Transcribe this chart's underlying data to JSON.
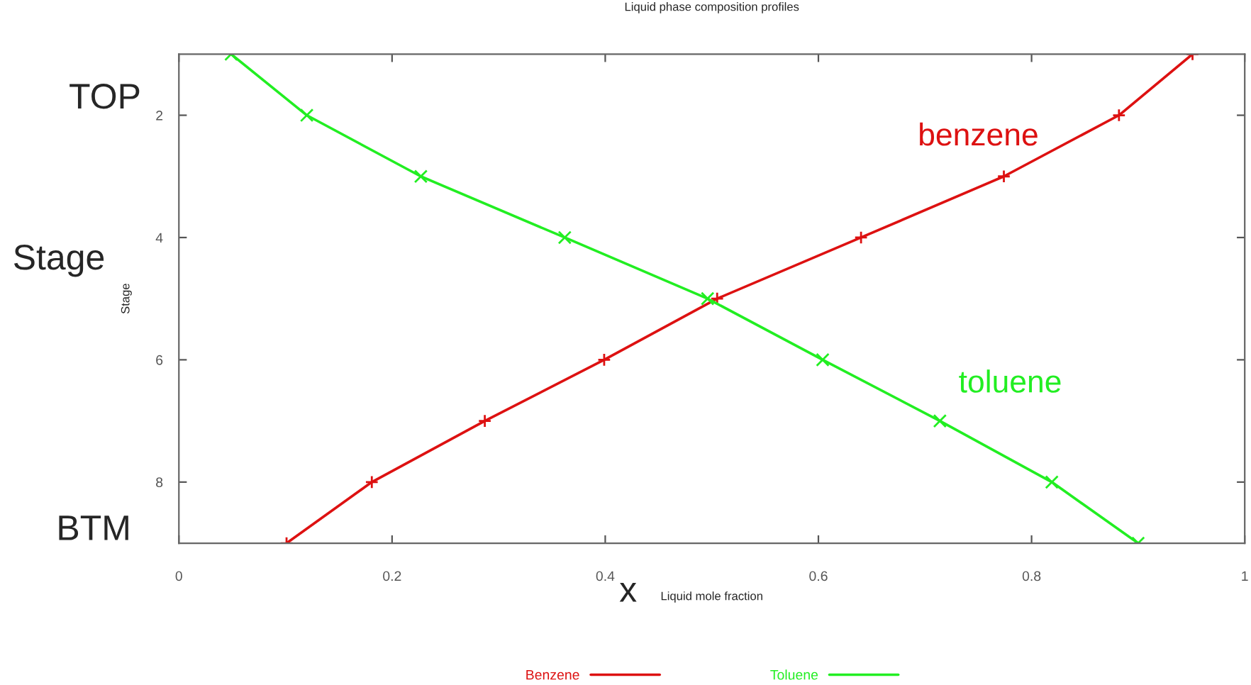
{
  "chart_data": {
    "type": "line",
    "title": "Liquid phase composition profiles",
    "xlabel": "Liquid mole fraction",
    "ylabel": "Stage",
    "xlim": [
      0,
      1
    ],
    "xticks": [
      0,
      0.2,
      0.4,
      0.6,
      0.8,
      1
    ],
    "ylim": [
      9,
      1
    ],
    "yticks": [
      2,
      4,
      6,
      8
    ],
    "grid": false,
    "legend": "bottom",
    "series": [
      {
        "name": "Benzene",
        "color": "#dd1111",
        "marker": "plus",
        "x": [
          0.951,
          0.882,
          0.774,
          0.64,
          0.505,
          0.399,
          0.287,
          0.181,
          0.101
        ],
        "values": [
          1,
          2,
          3,
          4,
          5,
          6,
          7,
          8,
          9
        ]
      },
      {
        "name": "Toluene",
        "color": "#22ee22",
        "marker": "cross",
        "x": [
          0.049,
          0.12,
          0.227,
          0.362,
          0.496,
          0.604,
          0.714,
          0.819,
          0.9
        ],
        "values": [
          1,
          2,
          3,
          4,
          5,
          6,
          7,
          8,
          9
        ]
      }
    ],
    "annotations": [
      "TOP",
      "Stage",
      "BTM",
      "x",
      "benzene",
      "toluene"
    ]
  }
}
